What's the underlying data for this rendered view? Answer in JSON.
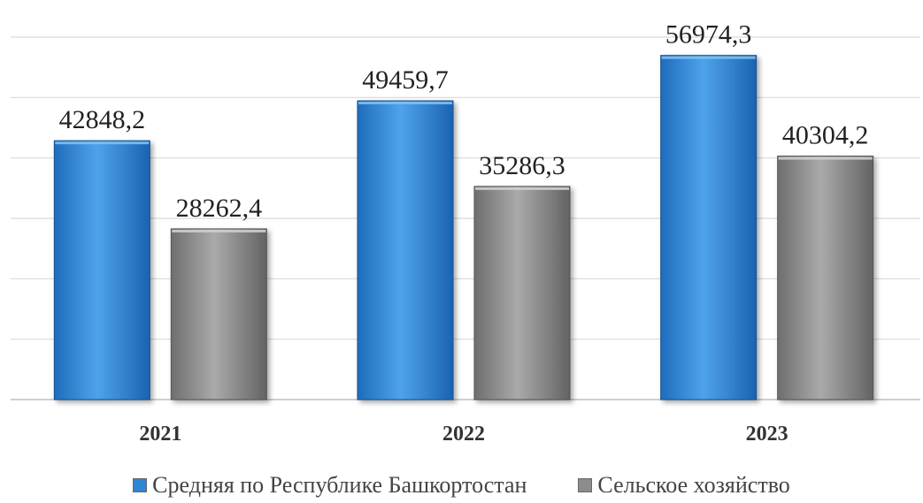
{
  "chart_data": {
    "type": "bar",
    "categories": [
      "2021",
      "2022",
      "2023"
    ],
    "series": [
      {
        "name": "Средняя по Республике Башкортостан",
        "values": [
          42848.2,
          49459.7,
          56974.3
        ],
        "labels": [
          "42848,2",
          "49459,7",
          "56974,3"
        ],
        "color": "#2f86d4"
      },
      {
        "name": "Сельское хозяйство",
        "values": [
          28262.4,
          35286.3,
          40304.2
        ],
        "labels": [
          "28262,4",
          "35286,3",
          "40304,2"
        ],
        "color": "#8c8c8c"
      }
    ],
    "title": "",
    "xlabel": "",
    "ylabel": "",
    "ylim": [
      0,
      60000
    ],
    "grid": true,
    "legend": "bottom"
  }
}
